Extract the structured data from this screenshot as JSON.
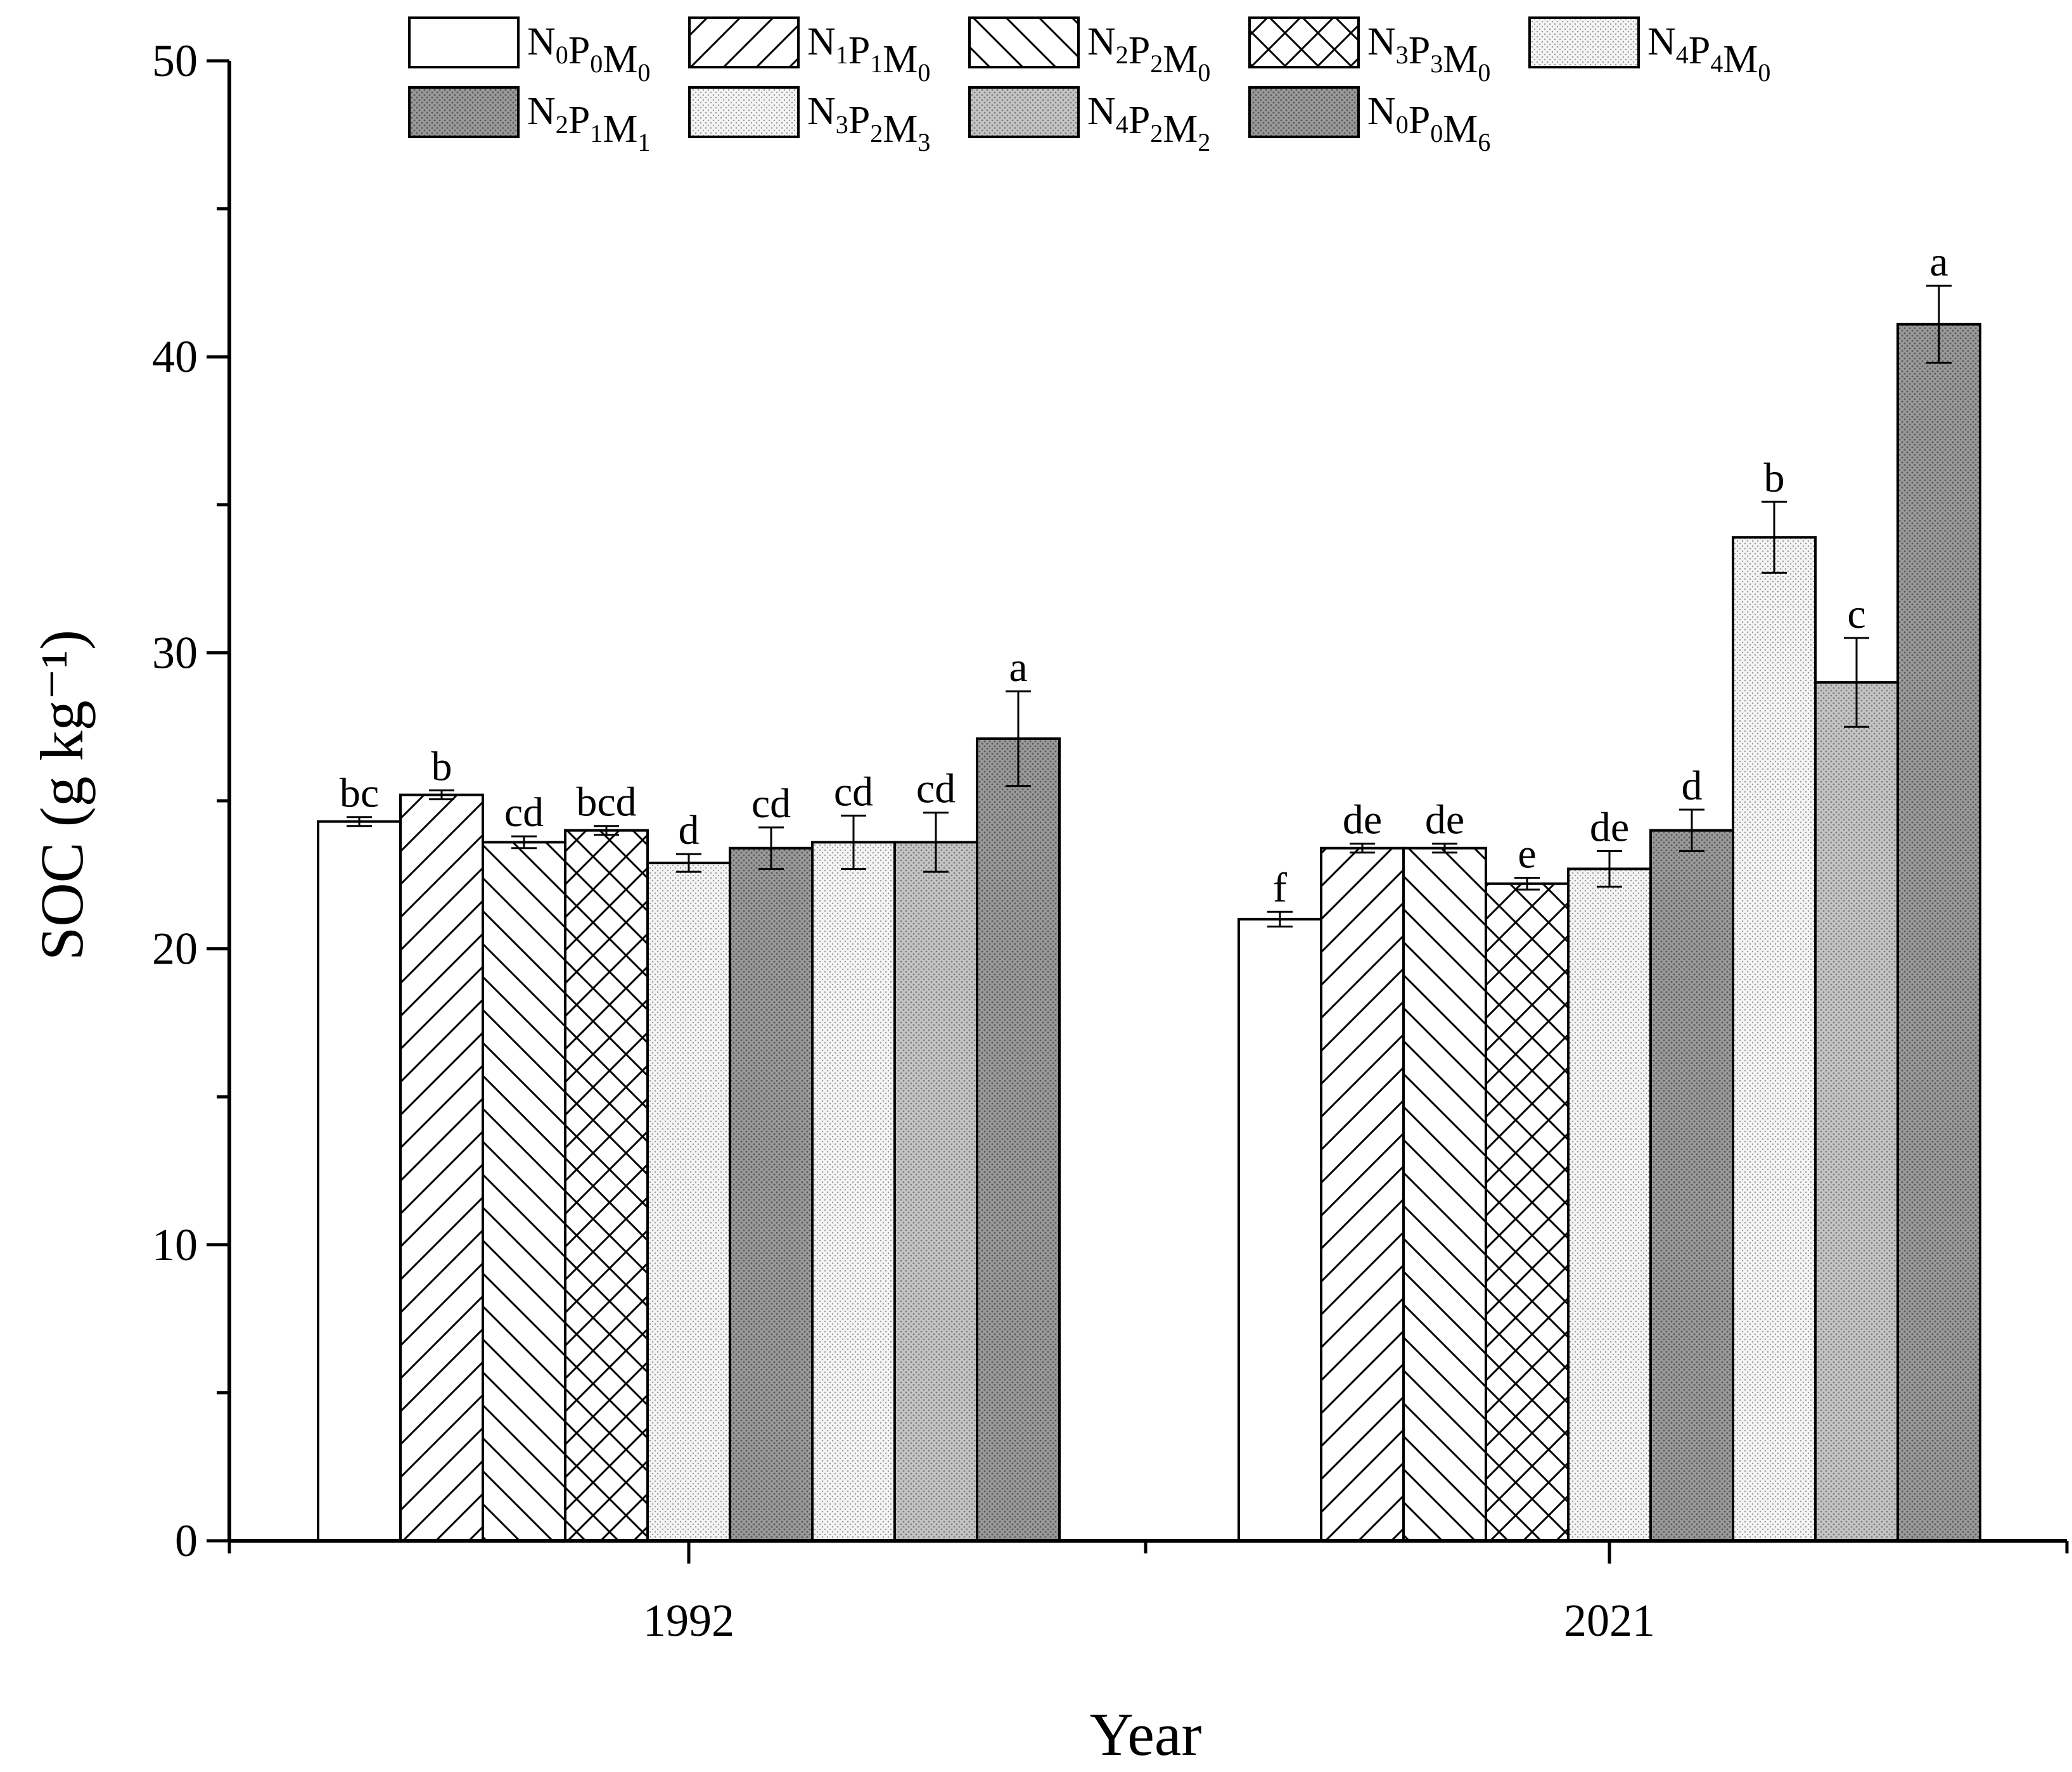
{
  "chart_data": {
    "type": "bar",
    "title": "",
    "xlabel": "Year",
    "ylabel": "SOC (g kg⁻¹)",
    "ylim": [
      0,
      50
    ],
    "yticks": [
      0,
      10,
      20,
      30,
      40,
      50
    ],
    "grid": false,
    "legend_position": "top",
    "categories": [
      "1992",
      "2021"
    ],
    "series": [
      {
        "name": "N0P0M0",
        "label": [
          [
            "N",
            "0"
          ],
          [
            "P",
            "0"
          ],
          [
            "M",
            "0"
          ]
        ],
        "pattern": "none",
        "fill": "#ffffff",
        "values": [
          24.3,
          21.0
        ],
        "errors": [
          0.15,
          0.25
        ],
        "letters": [
          "bc",
          "f"
        ]
      },
      {
        "name": "N1P1M0",
        "label": [
          [
            "N",
            "1"
          ],
          [
            "P",
            "1"
          ],
          [
            "M",
            "0"
          ]
        ],
        "pattern": "fwd",
        "fill": "#ffffff",
        "values": [
          25.2,
          23.4
        ],
        "errors": [
          0.15,
          0.15
        ],
        "letters": [
          "b",
          "de"
        ]
      },
      {
        "name": "N2P2M0",
        "label": [
          [
            "N",
            "2"
          ],
          [
            "P",
            "2"
          ],
          [
            "M",
            "0"
          ]
        ],
        "pattern": "back",
        "fill": "#ffffff",
        "values": [
          23.6,
          23.4
        ],
        "errors": [
          0.2,
          0.15
        ],
        "letters": [
          "cd",
          "de"
        ]
      },
      {
        "name": "N3P3M0",
        "label": [
          [
            "N",
            "3"
          ],
          [
            "P",
            "3"
          ],
          [
            "M",
            "0"
          ]
        ],
        "pattern": "cross",
        "fill": "#ffffff",
        "values": [
          24.0,
          22.2
        ],
        "errors": [
          0.15,
          0.2
        ],
        "letters": [
          "bcd",
          "e"
        ]
      },
      {
        "name": "N4P4M0",
        "label": [
          [
            "N",
            "4"
          ],
          [
            "P",
            "4"
          ],
          [
            "M",
            "0"
          ]
        ],
        "pattern": "dotlight",
        "fill": "#f0f0f0",
        "values": [
          22.9,
          22.7
        ],
        "errors": [
          0.3,
          0.6
        ],
        "letters": [
          "d",
          "de"
        ]
      },
      {
        "name": "N2P1M1",
        "label": [
          [
            "N",
            "2"
          ],
          [
            "P",
            "1"
          ],
          [
            "M",
            "1"
          ]
        ],
        "pattern": "dotdark",
        "fill": "#8c8c8c",
        "values": [
          23.4,
          24.0
        ],
        "errors": [
          0.7,
          0.7
        ],
        "letters": [
          "cd",
          "d"
        ]
      },
      {
        "name": "N3P2M3",
        "label": [
          [
            "N",
            "3"
          ],
          [
            "P",
            "2"
          ],
          [
            "M",
            "3"
          ]
        ],
        "pattern": "dotlight",
        "fill": "#e6e6e6",
        "values": [
          23.6,
          33.9
        ],
        "errors": [
          0.9,
          1.2
        ],
        "letters": [
          "cd",
          "b"
        ]
      },
      {
        "name": "N4P2M2",
        "label": [
          [
            "N",
            "4"
          ],
          [
            "P",
            "2"
          ],
          [
            "M",
            "2"
          ]
        ],
        "pattern": "dotmid",
        "fill": "#bdbdbd",
        "values": [
          23.6,
          29.0
        ],
        "errors": [
          1.0,
          1.5
        ],
        "letters": [
          "cd",
          "c"
        ]
      },
      {
        "name": "N0P0M6",
        "label": [
          [
            "N",
            "0"
          ],
          [
            "P",
            "0"
          ],
          [
            "M",
            "6"
          ]
        ],
        "pattern": "dotdark",
        "fill": "#7a7a7a",
        "values": [
          27.1,
          41.1
        ],
        "errors": [
          1.6,
          1.3
        ],
        "letters": [
          "a",
          "a"
        ]
      }
    ]
  }
}
